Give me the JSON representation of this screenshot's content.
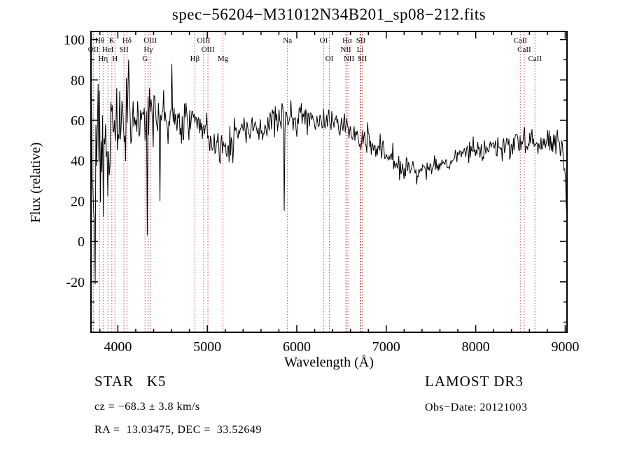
{
  "chart_data": {
    "type": "line",
    "title": "spec−56204−M31012N34B201_sp08−212.fits",
    "xlabel": "Wavelength (Å)",
    "ylabel": "Flux (relative)",
    "xlim": [
      3700,
      9020
    ],
    "ylim": [
      -45,
      104
    ],
    "x_ticks": [
      4000,
      5000,
      6000,
      7000,
      8000,
      9000
    ],
    "y_ticks": [
      -20,
      0,
      20,
      40,
      60,
      80,
      100
    ],
    "x_minor_step": 200,
    "y_minor_step": 10,
    "grid": false,
    "legend": "none",
    "axis_color": "#000000",
    "series": [
      {
        "name": "spectrum",
        "color": "#000000",
        "points": 640,
        "seed": 56204,
        "x_start": 3705,
        "x_end": 9020,
        "continuum": [
          [
            3705,
            38
          ],
          [
            3760,
            43
          ],
          [
            3850,
            48
          ],
          [
            3950,
            53
          ],
          [
            4050,
            58
          ],
          [
            4150,
            61
          ],
          [
            4250,
            59
          ],
          [
            4350,
            61
          ],
          [
            4450,
            63
          ],
          [
            4550,
            61
          ],
          [
            4650,
            59
          ],
          [
            4750,
            58
          ],
          [
            4850,
            58
          ],
          [
            4950,
            56
          ],
          [
            5050,
            51
          ],
          [
            5150,
            47
          ],
          [
            5250,
            48
          ],
          [
            5350,
            53
          ],
          [
            5450,
            56
          ],
          [
            5550,
            57
          ],
          [
            5650,
            58
          ],
          [
            5750,
            60
          ],
          [
            5850,
            61
          ],
          [
            5950,
            62
          ],
          [
            6050,
            62
          ],
          [
            6150,
            61
          ],
          [
            6250,
            60
          ],
          [
            6350,
            59
          ],
          [
            6450,
            58
          ],
          [
            6550,
            56
          ],
          [
            6650,
            53
          ],
          [
            6750,
            51
          ],
          [
            6850,
            48
          ],
          [
            6950,
            44
          ],
          [
            7050,
            41
          ],
          [
            7150,
            38
          ],
          [
            7250,
            36
          ],
          [
            7350,
            35
          ],
          [
            7450,
            36
          ],
          [
            7550,
            37
          ],
          [
            7650,
            39
          ],
          [
            7750,
            41
          ],
          [
            7850,
            43
          ],
          [
            7950,
            44
          ],
          [
            8050,
            45
          ],
          [
            8150,
            45
          ],
          [
            8250,
            46
          ],
          [
            8350,
            47
          ],
          [
            8450,
            49
          ],
          [
            8550,
            50
          ],
          [
            8650,
            49
          ],
          [
            8750,
            48
          ],
          [
            8850,
            49
          ],
          [
            8930,
            50
          ],
          [
            8970,
            46
          ],
          [
            9000,
            33
          ],
          [
            9020,
            12
          ]
        ],
        "noise_sigma": [
          [
            3705,
            26
          ],
          [
            3780,
            23
          ],
          [
            3860,
            19
          ],
          [
            3940,
            16
          ],
          [
            4020,
            13
          ],
          [
            4100,
            11
          ],
          [
            4200,
            9
          ],
          [
            4300,
            8
          ],
          [
            4450,
            7
          ],
          [
            4600,
            6
          ],
          [
            4800,
            5.5
          ],
          [
            5000,
            5
          ],
          [
            5300,
            4.5
          ],
          [
            5600,
            4
          ],
          [
            6000,
            3.5
          ],
          [
            6400,
            3.2
          ],
          [
            6800,
            3
          ],
          [
            7200,
            3
          ],
          [
            7600,
            2.8
          ],
          [
            8000,
            2.8
          ],
          [
            8400,
            2.8
          ],
          [
            8800,
            3
          ],
          [
            9020,
            3
          ]
        ],
        "spikes": [
          [
            4120,
            90
          ],
          [
            4330,
            3
          ],
          [
            4470,
            20
          ],
          [
            4600,
            88
          ],
          [
            5860,
            15
          ]
        ]
      }
    ],
    "line_markers": {
      "color": "#aa3333",
      "label_color": "#000000",
      "label_rows_y": [
        61,
        74,
        87
      ],
      "lines": [
        {
          "label": "Hθ",
          "wavelength": 3798,
          "row": 1
        },
        {
          "label": "K",
          "wavelength": 3933,
          "row": 1
        },
        {
          "label": "Hδ",
          "wavelength": 4102,
          "row": 1
        },
        {
          "label": "OIII",
          "wavelength": 4363,
          "row": 1
        },
        {
          "label": "OIII",
          "wavelength": 4959,
          "row": 1
        },
        {
          "label": "Na",
          "wavelength": 5896,
          "row": 1
        },
        {
          "label": "OI",
          "wavelength": 6300,
          "row": 1
        },
        {
          "label": "Hα",
          "wavelength": 6563,
          "row": 1
        },
        {
          "label": "SII",
          "wavelength": 6716,
          "row": 1
        },
        {
          "label": "CaII",
          "wavelength": 8498,
          "row": 1
        },
        {
          "label": "OII",
          "wavelength": 3727,
          "row": 2
        },
        {
          "label": "HeI",
          "wavelength": 3889,
          "row": 2
        },
        {
          "label": "SII",
          "wavelength": 4068,
          "row": 2
        },
        {
          "label": "Hγ",
          "wavelength": 4340,
          "row": 2
        },
        {
          "label": "OIII",
          "wavelength": 5007,
          "row": 2
        },
        {
          "label": "NII",
          "wavelength": 6548,
          "row": 2
        },
        {
          "label": "Li",
          "wavelength": 6708,
          "row": 2
        },
        {
          "label": "CaII",
          "wavelength": 8542,
          "row": 2
        },
        {
          "label": "Hη",
          "wavelength": 3835,
          "row": 3
        },
        {
          "label": "H",
          "wavelength": 3968,
          "row": 3
        },
        {
          "label": "G",
          "wavelength": 4304,
          "row": 3
        },
        {
          "label": "Hβ",
          "wavelength": 4861,
          "row": 3
        },
        {
          "label": "Mg",
          "wavelength": 5175,
          "row": 3
        },
        {
          "label": "OI",
          "wavelength": 6364,
          "row": 3
        },
        {
          "label": "NII",
          "wavelength": 6583,
          "row": 3
        },
        {
          "label": "SII",
          "wavelength": 6731,
          "row": 3
        },
        {
          "label": "CaII",
          "wavelength": 8662,
          "row": 3
        }
      ]
    }
  },
  "annotations": {
    "class_label": "STAR   K5",
    "survey": "LAMOST DR3",
    "cz": "cz = −68.3 ± 3.8 km/s",
    "obs_date": "Obs−Date: 20121003",
    "ra_dec": "RA =  13.03475, DEC =  33.52649"
  }
}
